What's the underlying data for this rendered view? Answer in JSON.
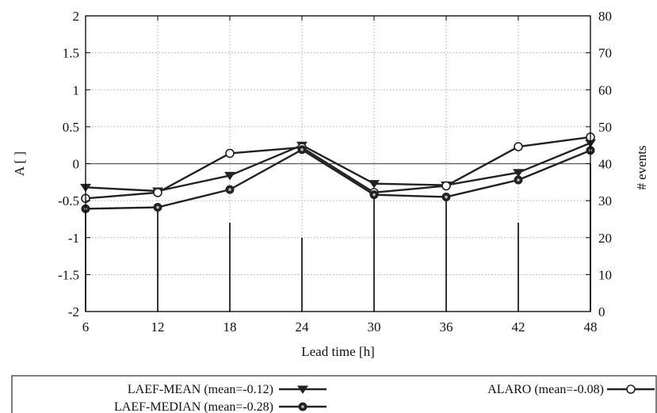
{
  "chart_data": {
    "type": "line",
    "x": [
      6,
      12,
      18,
      24,
      30,
      36,
      42,
      48
    ],
    "xlabel": "Lead time [h]",
    "ylabel": "A [ ]",
    "y2label": "# events",
    "xlim": [
      6,
      48
    ],
    "ylim": [
      -2,
      2
    ],
    "y2lim": [
      0,
      80
    ],
    "xticks": [
      "6",
      "12",
      "18",
      "24",
      "30",
      "36",
      "42",
      "48"
    ],
    "yticks": [
      "-2",
      "-1.5",
      "-1",
      "-0.5",
      "0",
      "0.5",
      "1",
      "1.5",
      "2"
    ],
    "y2ticks": [
      "0",
      "10",
      "20",
      "30",
      "40",
      "50",
      "60",
      "70",
      "80"
    ],
    "grid": true,
    "series": [
      {
        "name": "LAEF-MEAN (mean=-0.12)",
        "marker": "triangle-down",
        "values": [
          -0.32,
          -0.37,
          -0.16,
          0.25,
          -0.27,
          -0.29,
          -0.12,
          0.28
        ]
      },
      {
        "name": "ALARO (mean=-0.08)",
        "marker": "circle-open",
        "values": [
          -0.47,
          -0.39,
          0.14,
          0.22,
          -0.39,
          -0.3,
          0.23,
          0.36
        ]
      },
      {
        "name": "LAEF-MEDIAN (mean=-0.28)",
        "marker": "circle-filled",
        "values": [
          -0.61,
          -0.59,
          -0.35,
          0.19,
          -0.42,
          -0.45,
          -0.22,
          0.18
        ]
      }
    ],
    "events": {
      "type": "bar",
      "axis": "right",
      "x": [
        6,
        12,
        18,
        24,
        30,
        36,
        42,
        48
      ],
      "values": [
        28,
        28,
        24,
        20,
        33,
        30,
        24,
        40
      ]
    },
    "legend": {
      "placement": "bottom",
      "entries": [
        "LAEF-MEAN (mean=-0.12)",
        "ALARO (mean=-0.08)",
        "LAEF-MEDIAN (mean=-0.28)"
      ]
    },
    "colors": {
      "line": "#222222",
      "axis": "#000000",
      "grid": "#9a9a9a"
    }
  }
}
